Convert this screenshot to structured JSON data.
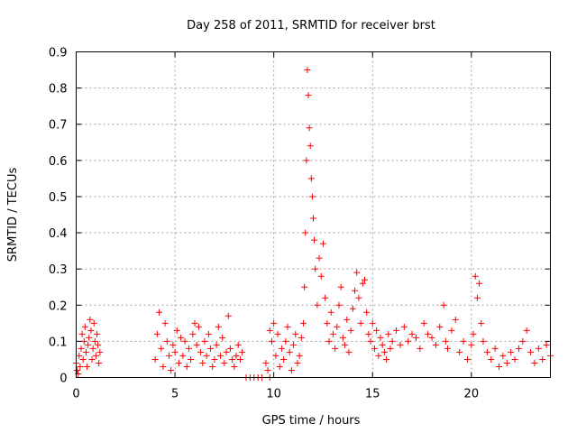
{
  "chart_data": {
    "type": "scatter",
    "title": "Day 258 of 2011, SRMTID for receiver brst",
    "xlabel": "GPS time / hours",
    "ylabel": "SRMTID / TECUs",
    "xlim": [
      0,
      24
    ],
    "ylim": [
      0,
      0.9
    ],
    "xticks": [
      0,
      5,
      10,
      15,
      20
    ],
    "yticks": [
      0,
      0.1,
      0.2,
      0.3,
      0.4,
      0.5,
      0.6,
      0.7,
      0.8,
      0.9
    ],
    "grid": true,
    "marker": "+",
    "color": "#ff0000",
    "series": [
      {
        "name": "SRMTID",
        "x": [
          0.0,
          0.05,
          0.1,
          0.15,
          0.2,
          0.25,
          0.3,
          0.35,
          0.4,
          0.45,
          0.5,
          0.55,
          0.6,
          0.65,
          0.7,
          0.75,
          0.8,
          0.85,
          0.9,
          0.95,
          1.0,
          1.05,
          1.1,
          1.15,
          1.2,
          4.0,
          4.1,
          4.2,
          4.3,
          4.4,
          4.5,
          4.6,
          4.7,
          4.8,
          4.9,
          5.0,
          5.1,
          5.2,
          5.3,
          5.4,
          5.5,
          5.6,
          5.7,
          5.8,
          5.9,
          6.0,
          6.1,
          6.2,
          6.3,
          6.4,
          6.5,
          6.6,
          6.7,
          6.8,
          6.9,
          7.0,
          7.1,
          7.2,
          7.3,
          7.4,
          7.5,
          7.6,
          7.7,
          7.8,
          7.9,
          8.0,
          8.1,
          8.2,
          8.3,
          8.4,
          8.6,
          8.8,
          9.0,
          9.2,
          9.4,
          9.8,
          9.6,
          9.7,
          9.8,
          9.9,
          10.0,
          10.1,
          10.2,
          10.3,
          10.4,
          10.5,
          10.6,
          10.7,
          10.8,
          10.9,
          11.0,
          11.1,
          11.2,
          11.3,
          11.4,
          11.5,
          11.55,
          11.6,
          11.65,
          11.7,
          11.75,
          11.8,
          11.85,
          11.9,
          11.95,
          12.0,
          12.05,
          12.1,
          12.2,
          12.3,
          12.4,
          12.5,
          12.6,
          12.7,
          12.8,
          12.9,
          13.0,
          13.1,
          13.2,
          13.3,
          13.4,
          13.5,
          13.6,
          13.7,
          13.8,
          13.9,
          14.0,
          14.1,
          14.2,
          14.3,
          14.4,
          14.5,
          14.6,
          14.7,
          14.8,
          14.9,
          15.0,
          15.1,
          15.2,
          15.3,
          15.4,
          15.5,
          15.6,
          15.7,
          15.8,
          15.9,
          16.0,
          16.2,
          16.4,
          16.6,
          16.8,
          17.0,
          17.2,
          17.4,
          17.6,
          17.8,
          18.0,
          18.2,
          18.4,
          18.6,
          18.7,
          18.8,
          19.0,
          19.2,
          19.4,
          19.6,
          19.8,
          20.0,
          20.1,
          20.2,
          20.3,
          20.4,
          20.5,
          20.6,
          20.8,
          21.0,
          21.2,
          21.4,
          21.6,
          21.8,
          22.0,
          22.2,
          22.4,
          22.6,
          22.8,
          23.0,
          23.2,
          23.4,
          23.6,
          23.8,
          24.0
        ],
        "y": [
          0.04,
          0.02,
          0.01,
          0.06,
          0.03,
          0.08,
          0.12,
          0.05,
          0.1,
          0.14,
          0.07,
          0.03,
          0.09,
          0.11,
          0.16,
          0.13,
          0.05,
          0.08,
          0.15,
          0.1,
          0.06,
          0.12,
          0.09,
          0.04,
          0.07,
          0.05,
          0.12,
          0.18,
          0.08,
          0.03,
          0.15,
          0.1,
          0.06,
          0.02,
          0.09,
          0.07,
          0.13,
          0.04,
          0.11,
          0.06,
          0.1,
          0.03,
          0.08,
          0.05,
          0.12,
          0.15,
          0.09,
          0.14,
          0.07,
          0.04,
          0.1,
          0.06,
          0.12,
          0.08,
          0.03,
          0.05,
          0.09,
          0.14,
          0.06,
          0.11,
          0.04,
          0.07,
          0.17,
          0.08,
          0.05,
          0.03,
          0.06,
          0.09,
          0.05,
          0.07,
          0.0,
          0.0,
          0.0,
          0.0,
          0.0,
          0.0,
          0.04,
          0.02,
          0.13,
          0.1,
          0.15,
          0.06,
          0.12,
          0.03,
          0.08,
          0.05,
          0.1,
          0.14,
          0.07,
          0.02,
          0.09,
          0.12,
          0.04,
          0.06,
          0.11,
          0.15,
          0.25,
          0.4,
          0.6,
          0.85,
          0.78,
          0.69,
          0.64,
          0.55,
          0.5,
          0.44,
          0.38,
          0.3,
          0.2,
          0.33,
          0.28,
          0.37,
          0.22,
          0.15,
          0.1,
          0.18,
          0.12,
          0.08,
          0.14,
          0.2,
          0.25,
          0.11,
          0.09,
          0.16,
          0.07,
          0.13,
          0.19,
          0.24,
          0.29,
          0.22,
          0.15,
          0.26,
          0.27,
          0.18,
          0.12,
          0.1,
          0.15,
          0.08,
          0.13,
          0.06,
          0.11,
          0.09,
          0.07,
          0.05,
          0.12,
          0.08,
          0.1,
          0.13,
          0.09,
          0.14,
          0.1,
          0.12,
          0.11,
          0.08,
          0.15,
          0.12,
          0.11,
          0.09,
          0.14,
          0.2,
          0.1,
          0.08,
          0.13,
          0.16,
          0.07,
          0.1,
          0.05,
          0.09,
          0.12,
          0.28,
          0.22,
          0.26,
          0.15,
          0.1,
          0.07,
          0.05,
          0.08,
          0.03,
          0.06,
          0.04,
          0.07,
          0.05,
          0.08,
          0.1,
          0.13,
          0.07,
          0.04,
          0.08,
          0.05,
          0.09,
          0.06
        ]
      }
    ]
  }
}
